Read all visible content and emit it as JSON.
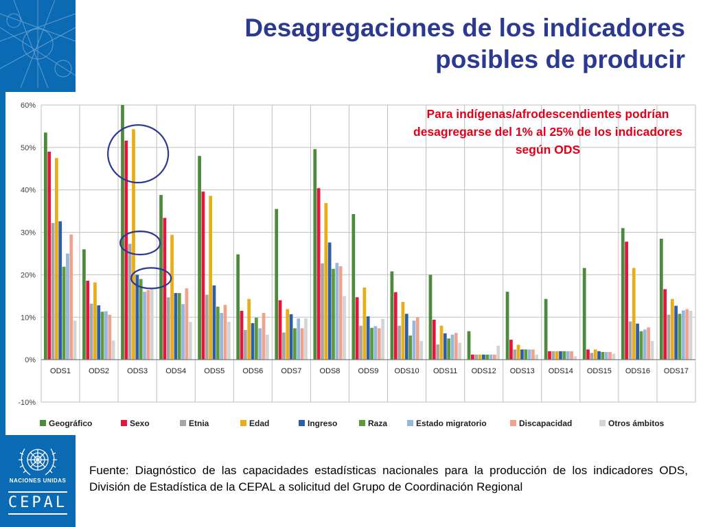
{
  "title": "Desagregaciones de los indicadores posibles de producir",
  "annotation": "Para indígenas/afrodescendientes podrían desagregarse del 1% al 25% de los indicadores según ODS",
  "source": "Fuente: Diagnóstico de las capacidades estadísticas nacionales para la producción de los indicadores ODS, División de Estadística de la CEPAL a solicitud del Grupo de Coordinación Regional",
  "branding": {
    "un_name": "NACIONES UNIDAS",
    "cepal": "CEPAL"
  },
  "colors": {
    "brand_blue": "#0a6ab3",
    "title_blue": "#2b3990",
    "annotation_red": "#e0001b",
    "highlight_circle": "#2b3990"
  },
  "chart_data": {
    "type": "bar",
    "ylim": [
      -10,
      60
    ],
    "yticks": [
      "-10%",
      "0%",
      "10%",
      "20%",
      "30%",
      "40%",
      "50%",
      "60%"
    ],
    "grid": true,
    "legend_position": "bottom",
    "categories": [
      "ODS1",
      "ODS2",
      "ODS3",
      "ODS4",
      "ODS5",
      "ODS6",
      "ODS7",
      "ODS8",
      "ODS9",
      "ODS10",
      "ODS11",
      "ODS12",
      "ODS13",
      "ODS14",
      "ODS15",
      "ODS16",
      "ODS17"
    ],
    "series": [
      {
        "name": "Geográfico",
        "color": "#4e8a3c",
        "values": [
          53.5,
          26,
          60,
          38.8,
          48,
          24.8,
          35.5,
          49.6,
          34.3,
          20.8,
          20,
          6.7,
          16,
          14.3,
          21.6,
          31,
          28.5
        ]
      },
      {
        "name": "Sexo",
        "color": "#e3163e",
        "values": [
          49,
          18.6,
          51.6,
          33.4,
          39.6,
          11.5,
          14,
          40.4,
          14.7,
          15.9,
          9.4,
          1.2,
          4.7,
          2,
          2.4,
          27.8,
          16.6
        ]
      },
      {
        "name": "Etnia",
        "color": "#a6a6a6",
        "values": [
          32.2,
          13.2,
          27.3,
          14.7,
          15.3,
          7,
          6.4,
          22.7,
          8,
          8,
          3.6,
          1.2,
          2.4,
          2,
          1.6,
          9,
          10.6
        ]
      },
      {
        "name": "Edad",
        "color": "#e9ad17",
        "values": [
          47.5,
          18.2,
          54.3,
          29.4,
          38.6,
          14.3,
          11.9,
          36.9,
          17,
          13.6,
          8,
          1.2,
          3.5,
          2,
          2.4,
          21.6,
          14.3
        ]
      },
      {
        "name": "Ingreso",
        "color": "#2f5ea8",
        "values": [
          32.6,
          12.8,
          20,
          15.7,
          17.5,
          8.6,
          10.7,
          27.6,
          10.2,
          10.8,
          6.2,
          1.2,
          2.4,
          2,
          2,
          8.5,
          12.7
        ]
      },
      {
        "name": "Raza",
        "color": "#5c9a3d",
        "values": [
          21.9,
          11.3,
          19,
          15.7,
          12.5,
          9.9,
          7.4,
          21.4,
          7.5,
          5.7,
          5,
          1.2,
          2.4,
          2,
          1.8,
          6.7,
          10.8
        ]
      },
      {
        "name": "Estado migratorio",
        "color": "#95b7de",
        "values": [
          25,
          11.4,
          16,
          13.1,
          11,
          7.4,
          9.7,
          22.8,
          7.9,
          9.2,
          5.9,
          1.2,
          2.4,
          2,
          1.8,
          7.1,
          11.6
        ]
      },
      {
        "name": "Discapacidad",
        "color": "#efa28d",
        "values": [
          29.5,
          10.6,
          16.4,
          16.8,
          12.9,
          11,
          7.4,
          22,
          7.4,
          10,
          6.3,
          1.2,
          2.4,
          2,
          1.8,
          7.6,
          11.9
        ]
      },
      {
        "name": "Otros ámbitos",
        "color": "#d4d4d4",
        "values": [
          9.2,
          4.5,
          16.8,
          8.9,
          8.9,
          5.9,
          9.7,
          15,
          9.6,
          4.4,
          4,
          3.3,
          1.2,
          0.8,
          1.4,
          4.4,
          11.5
        ]
      }
    ]
  }
}
